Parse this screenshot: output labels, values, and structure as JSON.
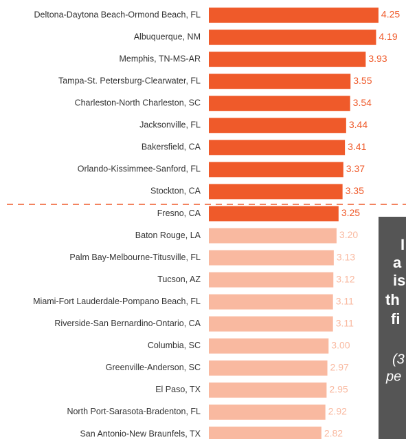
{
  "chart_data": {
    "type": "bar",
    "orientation": "horizontal",
    "categories": [
      "Deltona-Daytona Beach-Ormond Beach, FL",
      "Albuquerque, NM",
      "Memphis, TN-MS-AR",
      "Tampa-St. Petersburg-Clearwater, FL",
      "Charleston-North Charleston, SC",
      "Jacksonville, FL",
      "Bakersfield, CA",
      "Orlando-Kissimmee-Sanford, FL",
      "Stockton, CA",
      "Fresno, CA",
      "Baton Rouge, LA",
      "Palm Bay-Melbourne-Titusville, FL",
      "Tucson, AZ",
      "Miami-Fort Lauderdale-Pompano Beach, FL",
      "Riverside-San Bernardino-Ontario, CA",
      "Columbia, SC",
      "Greenville-Anderson, SC",
      "El Paso, TX",
      "North Port-Sarasota-Bradenton, FL",
      "San Antonio-New Braunfels, TX"
    ],
    "values": [
      4.25,
      4.19,
      3.93,
      3.55,
      3.54,
      3.44,
      3.41,
      3.37,
      3.35,
      3.25,
      3.2,
      3.13,
      3.12,
      3.11,
      3.11,
      3.0,
      2.97,
      2.95,
      2.92,
      2.82
    ],
    "value_labels": [
      "4.25",
      "4.19",
      "3.93",
      "3.55",
      "3.54",
      "3.44",
      "3.41",
      "3.37",
      "3.35",
      "3.25",
      "3.20",
      "3.13",
      "3.12",
      "3.11",
      "3.11",
      "3.00",
      "2.97",
      "2.95",
      "2.92",
      "2.82"
    ],
    "colors": [
      "#ef5a2a",
      "#ef5a2a",
      "#ef5a2a",
      "#ef5a2a",
      "#ef5a2a",
      "#ef5a2a",
      "#ef5a2a",
      "#ef5a2a",
      "#ef5a2a",
      "#ef5a2a",
      "#f9b9a0",
      "#f9b9a0",
      "#f9b9a0",
      "#f9b9a0",
      "#f9b9a0",
      "#f9b9a0",
      "#f9b9a0",
      "#f9b9a0",
      "#f9b9a0",
      "#f9b9a0"
    ],
    "xlim": [
      0,
      4.5
    ],
    "annotation_lines": [
      "I",
      "a",
      "is",
      "th",
      "fi"
    ],
    "annotation_note": [
      "(3",
      "pe"
    ]
  }
}
